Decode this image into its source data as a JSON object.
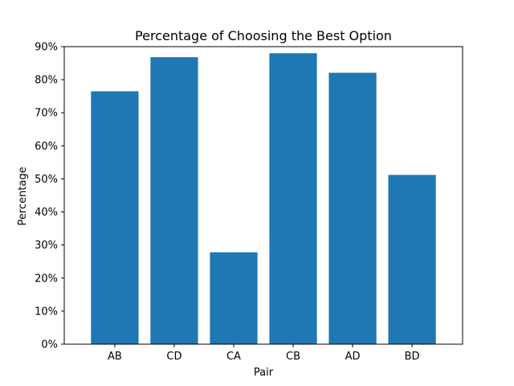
{
  "chart_data": {
    "type": "bar",
    "title": "Percentage of Choosing the Best Option",
    "xlabel": "Pair",
    "ylabel": "Percentage",
    "categories": [
      "AB",
      "CD",
      "CA",
      "CB",
      "AD",
      "BD"
    ],
    "values": [
      76.5,
      86.8,
      27.8,
      88.0,
      82.1,
      51.2
    ],
    "ylim": [
      0,
      90
    ],
    "yticks": [
      0,
      10,
      20,
      30,
      40,
      50,
      60,
      70,
      80,
      90
    ],
    "ytick_labels": [
      "0%",
      "10%",
      "20%",
      "30%",
      "40%",
      "50%",
      "60%",
      "70%",
      "80%",
      "90%"
    ],
    "grid": false,
    "bar_color": "#1f77b4"
  }
}
